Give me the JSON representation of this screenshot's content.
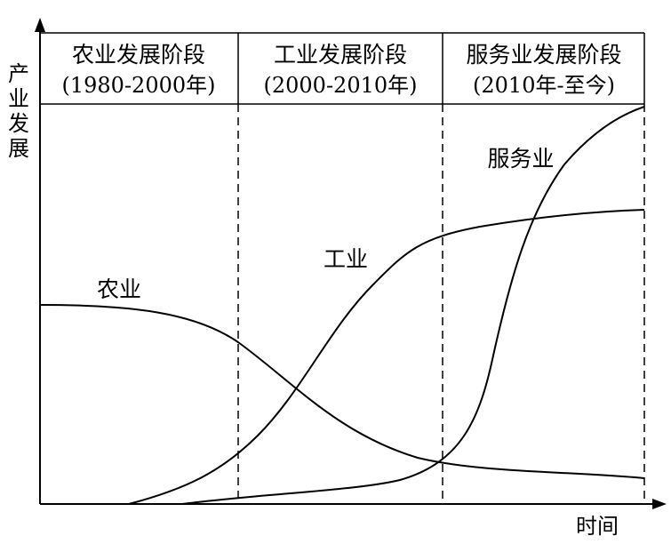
{
  "y_axis_label": [
    "产",
    "业",
    "发",
    "展"
  ],
  "x_axis_label": "时间",
  "stages": [
    {
      "title": "农业发展阶段",
      "period": "(1980-2000年)"
    },
    {
      "title": "工业发展阶段",
      "period": "(2000-2010年)"
    },
    {
      "title": "服务业发展阶段",
      "period": "(2010年-至今)"
    }
  ],
  "curves": {
    "agriculture": "农业",
    "industry": "工业",
    "services": "服务业"
  },
  "colors": {
    "line": "#000000",
    "background": "#ffffff"
  }
}
